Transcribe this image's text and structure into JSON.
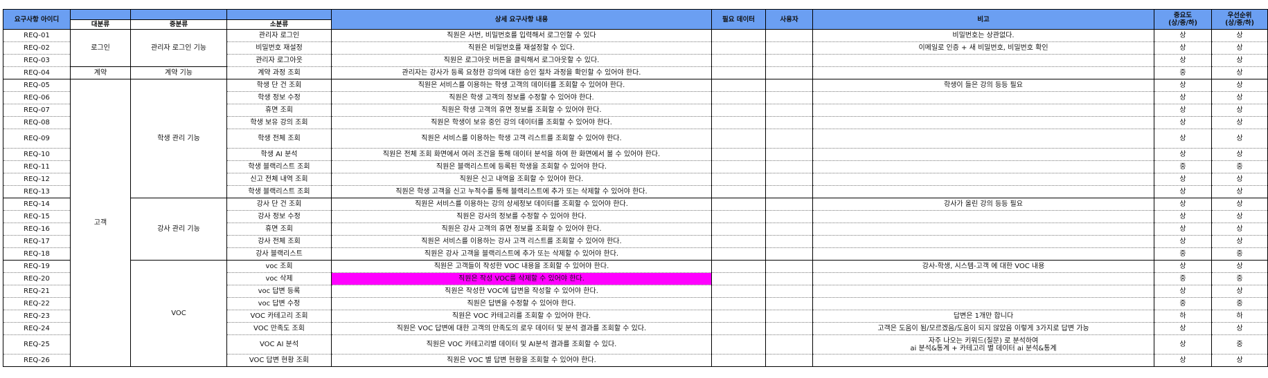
{
  "headers": {
    "req_id": "요구사항 아이디",
    "category_large": "대분류",
    "category_mid": "중분류",
    "category_small": "소분류",
    "detail": "상세 요구사항 내용",
    "required_data": "필요 데이터",
    "user": "사용자",
    "note": "비고",
    "importance_line1": "중요도",
    "importance_line2": "(상/중/하)",
    "priority_line1": "우선순위",
    "priority_line2": "(상/중/하)"
  },
  "groups": {
    "login": "로그인",
    "contract": "계약",
    "customer": "고객",
    "admin_login": "관리자 로그인 기능",
    "contract_fn": "계약 기능",
    "student_mgmt": "학생 관리 기능",
    "teacher_mgmt": "강사 관리 기능",
    "voc": "VOC"
  },
  "rows": [
    {
      "id": "REQ-01",
      "small": "관리자 로그인",
      "detail": "직원은 사번, 비밀번호를 입력해서 로그인할 수 있다",
      "note": "비밀번호는 상관없다.",
      "importance": "상",
      "priority": "상"
    },
    {
      "id": "REQ-02",
      "small": "비밀번호 재설정",
      "detail": "직원은 비밀번호를 재설정할 수 있다.",
      "note": "이메일로 인증 + 새 비밀번호, 비밀번호 확인",
      "importance": "상",
      "priority": "상"
    },
    {
      "id": "REQ-03",
      "small": "관리자 로그아웃",
      "detail": "직원은 로그아웃 버튼을 클릭해서 로그아웃할 수 있다.",
      "note": "",
      "importance": "상",
      "priority": "상"
    },
    {
      "id": "REQ-04",
      "small": "계약 과정 조회",
      "detail": "관리자는 강사가 등록 요청한 강의에 대한 승인 절차 과정을 확인할 수 있어야 한다.",
      "note": "",
      "importance": "중",
      "priority": "상"
    },
    {
      "id": "REQ-05",
      "small": "학생 단 건 조회",
      "detail": "직원은 서비스를 이용하는 학생 고객의 데이터를 조회할 수 있어야 한다.",
      "note": "학생이 들은 강의 등등 필요",
      "importance": "상",
      "priority": "상"
    },
    {
      "id": "REQ-06",
      "small": "학생 정보 수정",
      "detail": "직원은 학생 고객의 정보를 수정할 수 있어야 한다.",
      "note": "",
      "importance": "상",
      "priority": "상"
    },
    {
      "id": "REQ-07",
      "small": "휴면 조회",
      "detail": "직원은 학생 고객의 휴면 정보를 조회할 수 있어야 한다.",
      "note": "",
      "importance": "상",
      "priority": "상"
    },
    {
      "id": "REQ-08",
      "small": "학생 보유 강의 조회",
      "detail": "직원은 학생이 보유 중인 강의 데이터를 조회할 수 있어야 한다.",
      "note": "",
      "importance": "상",
      "priority": "상"
    },
    {
      "id": "REQ-09",
      "small": "학생 전체 조회",
      "detail": "직원은 서비스를 이용하는 학생 고객 리스트를 조회할 수 있어야 한다.",
      "note": "",
      "importance": "상",
      "priority": "상"
    },
    {
      "id": "REQ-10",
      "small": "학생 AI 분석",
      "detail": "직원은 전체 조회 화면에서 여러 조건을 통해 데이터 분석을 하여 한 화면에서 볼 수 있어야 한다.",
      "note": "",
      "importance": "상",
      "priority": "상"
    },
    {
      "id": "REQ-11",
      "small": "학생 블랙리스트 조회",
      "detail": "직원은 블랙리스트에 등록된 학생을 조회할 수 있어야 한다.",
      "note": "",
      "importance": "중",
      "priority": "중"
    },
    {
      "id": "REQ-12",
      "small": "신고 전체 내역 조회",
      "detail": "직원은 신고 내역을 조회할 수 있어야 한다.",
      "note": "",
      "importance": "상",
      "priority": "상"
    },
    {
      "id": "REQ-13",
      "small": "학생 블랙리스트 조회",
      "detail": "직원은 학생 고객을 신고 누적수를 통해 블랙리스트에 추가 또는 삭제할 수 있어야 한다.",
      "note": "",
      "importance": "상",
      "priority": "상"
    },
    {
      "id": "REQ-14",
      "small": "강사 단 건 조회",
      "detail": "직원은 서비스를 이용하는 강의 상세정보 데이터를 조회할 수 있어야 한다.",
      "note": "강사가 올린 강의 등등 필요",
      "importance": "상",
      "priority": "상"
    },
    {
      "id": "REQ-15",
      "small": "강사 정보 수정",
      "detail": "직원은 강사의 정보를 수정할 수 있어야 한다.",
      "note": "",
      "importance": "상",
      "priority": "상"
    },
    {
      "id": "REQ-16",
      "small": "휴면 조회",
      "detail": "직원은 강사 고객의 휴면 정보를 조회할 수 있어야 한다.",
      "note": "",
      "importance": "상",
      "priority": "상"
    },
    {
      "id": "REQ-17",
      "small": "강사 전체 조회",
      "detail": "직원은 서비스를 이용하는 강사 고객 리스트를 조회할 수 있어야 한다.",
      "note": "",
      "importance": "상",
      "priority": "상"
    },
    {
      "id": "REQ-18",
      "small": "강사 블랙리스트",
      "detail": "직원은 강사 고객을 블랙리스트에 추가 또는 삭제할 수 있어야 한다.",
      "note": "",
      "importance": "중",
      "priority": "중"
    },
    {
      "id": "REQ-19",
      "small": "voc 조회",
      "detail": "직원은 고객들이 작성한 VOC 내용을 조회할 수 있어야 한다.",
      "note": "강사-학생, 시스템-고객 에 대한 VOC 내용",
      "importance": "상",
      "priority": "상"
    },
    {
      "id": "REQ-20",
      "small": "voc 삭제",
      "detail": "직원은 작성 VOC를 삭제할 수 있어야 한다.",
      "note": "",
      "importance": "중",
      "priority": "중"
    },
    {
      "id": "REQ-21",
      "small": "voc 답변 등록",
      "detail": "직원은 작성한 VOC에 답변을 작성할 수 있어야 한다.",
      "note": "",
      "importance": "상",
      "priority": "상"
    },
    {
      "id": "REQ-22",
      "small": "voc 답변 수정",
      "detail": "직원은 답변을 수정할 수 있어야 한다.",
      "note": "",
      "importance": "중",
      "priority": "중"
    },
    {
      "id": "REQ-23",
      "small": "VOC 카테고리 조회",
      "detail": "직원은 VOC 카테고리를 조회할 수 있어야 한다.",
      "note": "답변은 1개만 합니다",
      "importance": "하",
      "priority": "하"
    },
    {
      "id": "REQ-24",
      "small": "VOC 만족도 조회",
      "detail": "직원은 VOC 답변에 대한 고객의 만족도의 로우 데이터 및 분석 결과를 조회할 수 있다.",
      "note": "고객은 도움이 됨/모르겠음/도움이 되지 않았음 이렇게 3가지로 답변 가능",
      "importance": "상",
      "priority": "상"
    },
    {
      "id": "REQ-25",
      "small": "VOC AI 분석",
      "detail": "직원은 VOC 카테고리별 데이터 및 AI분석 결과를 조회할 수 있다.",
      "note": "자주 나오는 키워드(질문) 로 분석하여",
      "note2": "ai 분석&통계 + 카테고리 별 데이터 ai 분석&통계",
      "importance": "상",
      "priority": "중"
    },
    {
      "id": "REQ-26",
      "small": "VOC 답변 현황 조회",
      "detail": "직원은 VOC 별 답변 현황을 조회할 수 있어야 한다.",
      "note": "",
      "importance": "상",
      "priority": "상"
    }
  ]
}
